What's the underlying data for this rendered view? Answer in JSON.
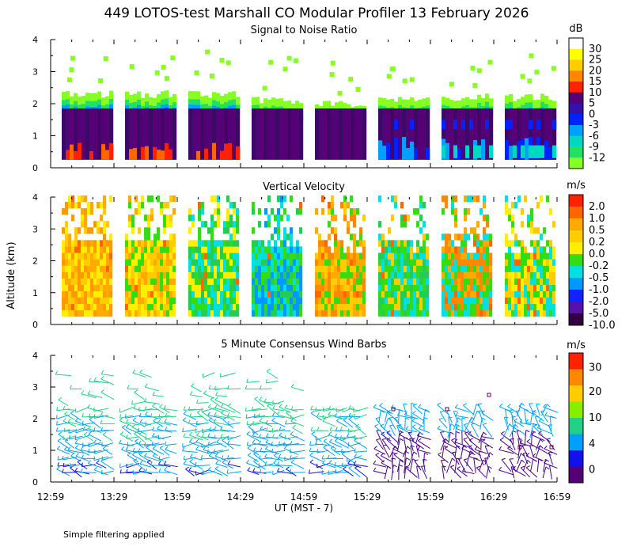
{
  "title": "449 LOTOS-test Marshall CO Modular Profiler 13 February 2026",
  "ylabel": "Altitude (km)",
  "xlabel": "UT  (MST - 7)",
  "footnote": "Simple filtering applied",
  "x_ticks": [
    "12:59",
    "13:29",
    "13:59",
    "14:29",
    "14:59",
    "15:29",
    "15:59",
    "16:29",
    "16:59"
  ],
  "y_ticks": [
    "0",
    "1",
    "2",
    "3",
    "4"
  ],
  "panels": [
    {
      "id": "snr",
      "title": "Signal to Noise Ratio",
      "unit": "dB",
      "colors": [
        "#ffffff",
        "#ffff00",
        "#ffcc00",
        "#ff8800",
        "#ff2200",
        "#550077",
        "#3311aa",
        "#0022ff",
        "#00a0ff",
        "#00d8c0",
        "#22e060",
        "#88ff22"
      ],
      "labels": [
        "30",
        "25",
        "20",
        "15",
        "10",
        "5",
        "0",
        "-3",
        "-6",
        "-9",
        "-12"
      ]
    },
    {
      "id": "vvel",
      "title": "Vertical Velocity",
      "unit": "m/s",
      "colors": [
        "#ff2200",
        "#ff6600",
        "#ffaa00",
        "#ffcc00",
        "#ffee00",
        "#33dd11",
        "#00e0e0",
        "#0099ff",
        "#1122ff",
        "#5511aa",
        "#330044"
      ],
      "labels": [
        "2.0",
        "1.0",
        "0.5",
        "0.2",
        "0.0",
        "-0.2",
        "-0.5",
        "-1.0",
        "-2.0",
        "-5.0",
        "-10.0"
      ]
    },
    {
      "id": "wind",
      "title": "5 Minute Consensus Wind Barbs",
      "unit": "m/s",
      "colors": [
        "#ff2200",
        "#ff8800",
        "#ffcc00",
        "#88ee00",
        "#22d088",
        "#00a0ff",
        "#1111ee",
        "#550077"
      ],
      "labels": [
        "30",
        "20",
        "10",
        "4",
        "0"
      ]
    }
  ],
  "chart_data": [
    {
      "type": "heatmap",
      "title": "Signal to Noise Ratio",
      "units": "dB",
      "x_range": [
        "12:59",
        "16:59"
      ],
      "ylim": [
        0,
        4
      ],
      "ylabel": "Altitude (km)",
      "colorbar_levels": [
        30,
        25,
        20,
        15,
        10,
        5,
        0,
        -3,
        -6,
        -9,
        -12
      ],
      "segments": [
        {
          "start": "13:00",
          "end": "13:25",
          "top_km": 2.3,
          "strong_signal": true
        },
        {
          "start": "13:30",
          "end": "13:55",
          "top_km": 2.3,
          "strong_signal": true
        },
        {
          "start": "14:00",
          "end": "14:25",
          "top_km": 2.3,
          "strong_signal": true
        },
        {
          "start": "14:30",
          "end": "14:55",
          "top_km": 2.1,
          "strong_signal": false
        },
        {
          "start": "15:00",
          "end": "15:25",
          "top_km": 2.0,
          "strong_signal": false
        },
        {
          "start": "15:30",
          "end": "15:55",
          "top_km": 2.1,
          "strong_signal": false
        },
        {
          "start": "16:00",
          "end": "16:25",
          "top_km": 2.2,
          "strong_signal": false
        },
        {
          "start": "16:30",
          "end": "16:55",
          "top_km": 2.2,
          "strong_signal": false
        }
      ]
    },
    {
      "type": "heatmap",
      "title": "Vertical Velocity",
      "units": "m/s",
      "x_range": [
        "12:59",
        "16:59"
      ],
      "ylim": [
        0,
        4
      ],
      "ylabel": "Altitude (km)",
      "colorbar_levels": [
        2.0,
        1.0,
        0.5,
        0.2,
        0.0,
        -0.2,
        -0.5,
        -1.0,
        -2.0,
        -5.0,
        -10.0
      ]
    },
    {
      "type": "scatter",
      "title": "5 Minute Consensus Wind Barbs",
      "units": "m/s",
      "x_range": [
        "12:59",
        "16:59"
      ],
      "ylim": [
        0,
        4
      ],
      "ylabel": "Altitude (km)",
      "xlabel": "UT  (MST - 7)",
      "colorbar_levels": [
        30,
        20,
        10,
        4,
        0
      ]
    }
  ]
}
